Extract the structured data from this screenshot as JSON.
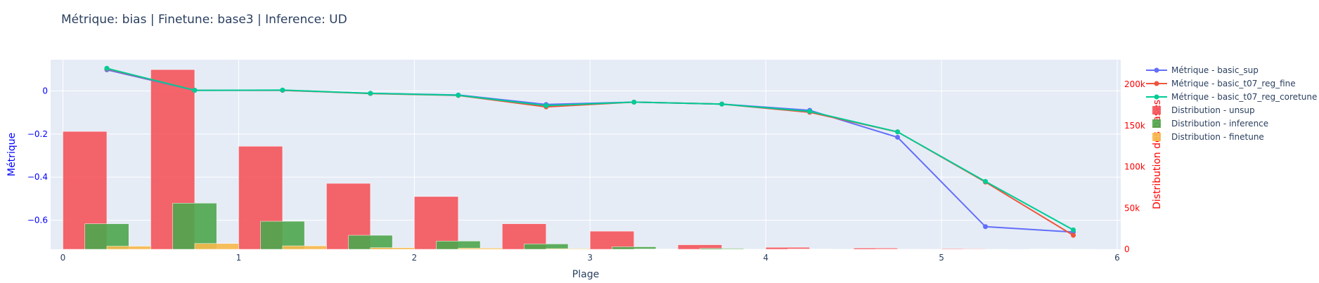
{
  "chart_data": {
    "type": "bar+line",
    "title": "Métrique: bias | Finetune: base3 | Inference: UD",
    "xlabel": "Plage",
    "ylabel": "Métrique",
    "y2label": "Distribution des bases",
    "xlim": [
      -0.07,
      6.02
    ],
    "ylim": [
      -0.735,
      0.145
    ],
    "y2lim": [
      0,
      230000
    ],
    "x_ticks": [
      "0",
      "1",
      "2",
      "3",
      "4",
      "5",
      "6"
    ],
    "y_ticks": [
      "0",
      "−0.2",
      "−0.4",
      "−0.6"
    ],
    "y2_ticks": [
      "0",
      "50k",
      "100k",
      "150k",
      "200k"
    ],
    "grid": true,
    "legend_position": "right",
    "colors": {
      "basic_sup": "#636efa",
      "basic_t07_reg_fine": "#ef553b",
      "basic_t07_reg_coretune": "#00cc96",
      "unsup": "#f4545b",
      "inference": "#4ca64c",
      "finetune": "#f7b84b",
      "plot_bg": "#e5ecf6",
      "left_axis": "#0000ff",
      "right_axis": "#ff0000"
    },
    "series": [
      {
        "name": "Métrique - basic_sup",
        "kind": "line",
        "x": [
          0.25,
          0.75,
          1.25,
          1.75,
          2.25,
          2.75,
          3.25,
          3.75,
          4.25,
          4.75,
          5.25,
          5.75
        ],
        "values": [
          0.098,
          0.003,
          0.003,
          -0.011,
          -0.019,
          -0.063,
          -0.052,
          -0.061,
          -0.09,
          -0.215,
          -0.63,
          -0.655
        ]
      },
      {
        "name": "Métrique - basic_t07_reg_fine",
        "kind": "line",
        "x": [
          0.25,
          0.75,
          1.25,
          1.75,
          2.25,
          2.75,
          3.25,
          3.75,
          4.25,
          4.75,
          5.25,
          5.75
        ],
        "values": [
          0.103,
          0.003,
          0.003,
          -0.012,
          -0.021,
          -0.074,
          -0.052,
          -0.061,
          -0.099,
          -0.19,
          -0.423,
          -0.67
        ]
      },
      {
        "name": "Métrique - basic_t07_reg_coretune",
        "kind": "line",
        "x": [
          0.25,
          0.75,
          1.25,
          1.75,
          2.25,
          2.75,
          3.25,
          3.75,
          4.25,
          4.75,
          5.25,
          5.75
        ],
        "values": [
          0.105,
          0.003,
          0.004,
          -0.011,
          -0.02,
          -0.068,
          -0.052,
          -0.061,
          -0.095,
          -0.19,
          -0.42,
          -0.645
        ]
      },
      {
        "name": "Distribution - unsup",
        "kind": "bar",
        "x": [
          0.125,
          0.625,
          1.125,
          1.625,
          2.125,
          2.625,
          3.125,
          3.625,
          4.125,
          4.625,
          5.125,
          5.625
        ],
        "values": [
          143000,
          218000,
          125000,
          80000,
          64000,
          31000,
          22000,
          5500,
          2400,
          1600,
          800,
          300
        ]
      },
      {
        "name": "Distribution - inference",
        "kind": "bar",
        "x": [
          0.25,
          0.75,
          1.25,
          1.75,
          2.25,
          2.75,
          3.25,
          3.75,
          4.25,
          4.75,
          5.25,
          5.75
        ],
        "values": [
          31000,
          56000,
          34000,
          17000,
          10000,
          6500,
          3000,
          1200,
          400,
          200,
          100,
          50
        ]
      },
      {
        "name": "Distribution - finetune",
        "kind": "bar",
        "x": [
          0.375,
          0.875,
          1.375,
          1.875,
          2.375,
          2.875,
          3.375,
          3.875,
          4.375,
          4.875,
          5.375,
          5.875
        ],
        "values": [
          3800,
          7000,
          4200,
          2000,
          1400,
          800,
          400,
          200,
          100,
          50,
          20,
          10
        ]
      }
    ],
    "legend": [
      {
        "label": "Métrique - basic_sup",
        "key": "basic_sup",
        "kind": "line"
      },
      {
        "label": "Métrique - basic_t07_reg_fine",
        "key": "basic_t07_reg_fine",
        "kind": "line"
      },
      {
        "label": "Métrique - basic_t07_reg_coretune",
        "key": "basic_t07_reg_coretune",
        "kind": "line"
      },
      {
        "label": "Distribution - unsup",
        "key": "unsup",
        "kind": "bar"
      },
      {
        "label": "Distribution - inference",
        "key": "inference",
        "kind": "bar"
      },
      {
        "label": "Distribution - finetune",
        "key": "finetune",
        "kind": "bar"
      }
    ]
  }
}
